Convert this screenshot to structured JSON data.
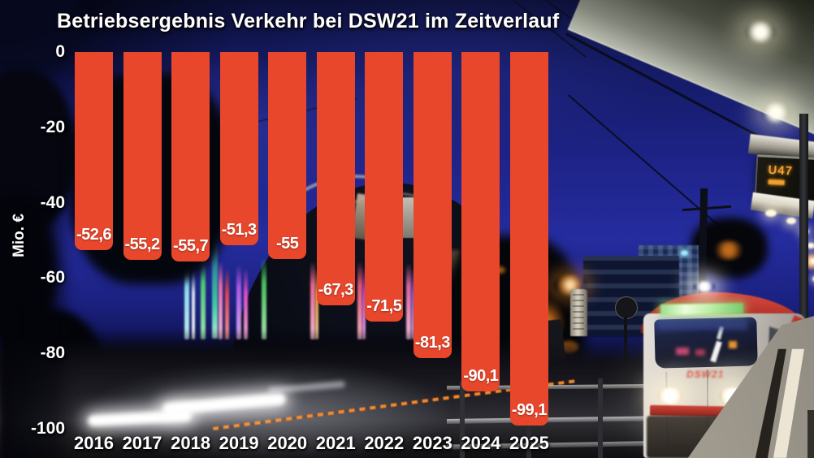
{
  "title": "Betriebsergebnis Verkehr bei DSW21 im Zeitverlauf",
  "chart_data": {
    "type": "bar",
    "categories": [
      "2016",
      "2017",
      "2018",
      "2019",
      "2020",
      "2021",
      "2022",
      "2023",
      "2024",
      "2025"
    ],
    "values": [
      -52.6,
      -55.2,
      -55.7,
      -51.3,
      -55,
      -67.3,
      -71.5,
      -81.3,
      -90.1,
      -99.1
    ],
    "value_labels": [
      "-52,6",
      "-55,2",
      "-55,7",
      "-51,3",
      "-55",
      "-67,3",
      "-71,5",
      "-81,3",
      "-90,1",
      "-99,1"
    ],
    "ylabel": "Mio. €",
    "xlabel": "",
    "yticks": [
      {
        "label": "0",
        "value": 0
      },
      {
        "label": "-20",
        "value": -20
      },
      {
        "label": "-40",
        "value": -40
      },
      {
        "label": "-60",
        "value": -60
      },
      {
        "label": "-80",
        "value": -80
      },
      {
        "label": "-100",
        "value": -100
      }
    ],
    "ylim": [
      0,
      -105
    ],
    "grid": false,
    "legend": false,
    "bar_color": "#e8472c",
    "text_color": "#ffffff"
  },
  "station": {
    "sign_text": "U47"
  },
  "tram": {
    "logo_text": "DSW21"
  },
  "colors": {
    "sky_blue": "#252c9e",
    "sign_amber": "#f0a030",
    "bar_red": "#e8472c"
  }
}
